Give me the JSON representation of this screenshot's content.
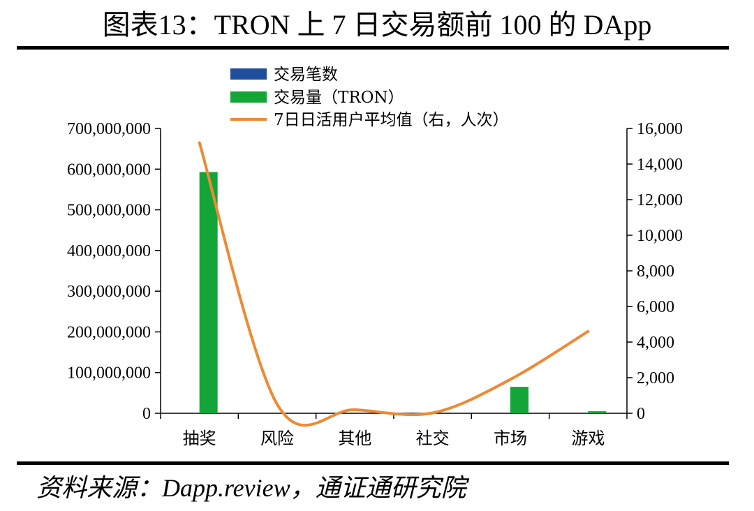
{
  "title": "图表13：TRON 上 7 日交易额前 100 的 DApp",
  "source": "资料来源：Dapp.review，通证通研究院",
  "colors": {
    "count": "#1f4e9c",
    "volume": "#13a538",
    "users": "#ed8a35"
  },
  "chart_data": {
    "type": "bar",
    "categories": [
      "抽奖",
      "风险",
      "其他",
      "社交",
      "市场",
      "游戏"
    ],
    "series": [
      {
        "name": "交易笔数",
        "axis": "left",
        "type": "bar",
        "values": [
          0,
          0,
          0,
          0,
          0,
          0
        ]
      },
      {
        "name": "交易量（TRON）",
        "axis": "left",
        "type": "bar",
        "values": [
          593000000,
          0,
          0,
          0,
          65000000,
          5000000
        ]
      },
      {
        "name": "7日日活用户平均值（右，人次）",
        "axis": "right",
        "type": "line",
        "values": [
          15200,
          500,
          200,
          20,
          1900,
          4600
        ]
      }
    ],
    "ylim_left": [
      0,
      700000000
    ],
    "yticks_left": [
      "700,000,000",
      "600,000,000",
      "500,000,000",
      "400,000,000",
      "300,000,000",
      "200,000,000",
      "100,000,000",
      "0"
    ],
    "ylim_right": [
      0,
      16000
    ],
    "yticks_right": [
      "16,000",
      "14,000",
      "12,000",
      "10,000",
      "8,000",
      "6,000",
      "4,000",
      "2,000",
      "0"
    ],
    "legend_position": "top-left",
    "grid": false
  }
}
